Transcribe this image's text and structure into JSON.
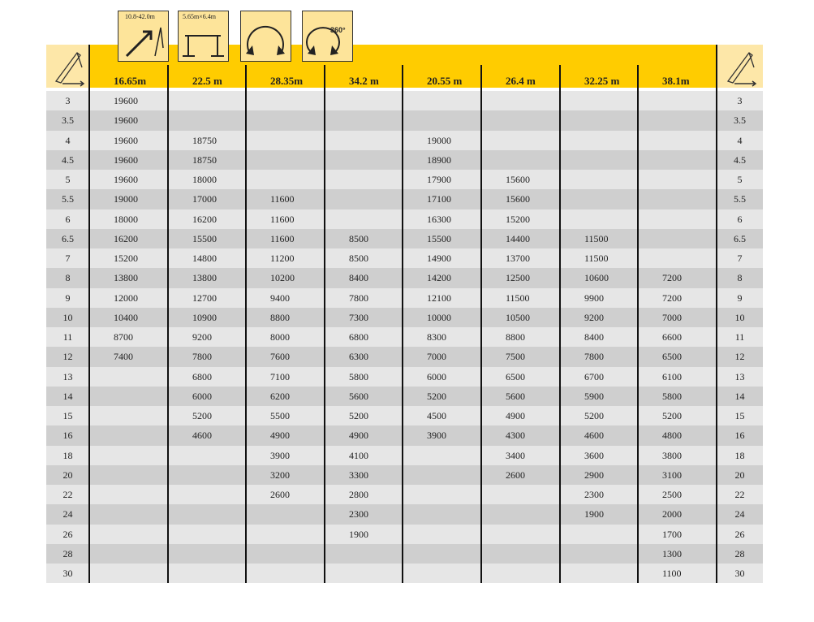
{
  "icons": {
    "boom_range": "10.8-42.0m",
    "outrigger_span": "5.65m×6.4m",
    "rotation": "360°"
  },
  "table": {
    "columns": [
      "16.65m",
      "22.5 m",
      "28.35m",
      "34.2 m",
      "20.55 m",
      "26.4 m",
      "32.25 m",
      "38.1m"
    ],
    "rows": [
      {
        "radius": 3,
        "values": [
          19600,
          null,
          null,
          null,
          null,
          null,
          null,
          null
        ]
      },
      {
        "radius": 3.5,
        "values": [
          19600,
          null,
          null,
          null,
          null,
          null,
          null,
          null
        ]
      },
      {
        "radius": 4,
        "values": [
          19600,
          18750,
          null,
          null,
          19000,
          null,
          null,
          null
        ]
      },
      {
        "radius": 4.5,
        "values": [
          19600,
          18750,
          null,
          null,
          18900,
          null,
          null,
          null
        ]
      },
      {
        "radius": 5,
        "values": [
          19600,
          18000,
          null,
          null,
          17900,
          15600,
          null,
          null
        ]
      },
      {
        "radius": 5.5,
        "values": [
          19000,
          17000,
          11600,
          null,
          17100,
          15600,
          null,
          null
        ]
      },
      {
        "radius": 6,
        "values": [
          18000,
          16200,
          11600,
          null,
          16300,
          15200,
          null,
          null
        ]
      },
      {
        "radius": 6.5,
        "values": [
          16200,
          15500,
          11600,
          8500,
          15500,
          14400,
          11500,
          null
        ]
      },
      {
        "radius": 7,
        "values": [
          15200,
          14800,
          11200,
          8500,
          14900,
          13700,
          11500,
          null
        ]
      },
      {
        "radius": 8,
        "values": [
          13800,
          13800,
          10200,
          8400,
          14200,
          12500,
          10600,
          7200
        ]
      },
      {
        "radius": 9,
        "values": [
          12000,
          12700,
          9400,
          7800,
          12100,
          11500,
          9900,
          7200
        ]
      },
      {
        "radius": 10,
        "values": [
          10400,
          10900,
          8800,
          7300,
          10000,
          10500,
          9200,
          7000
        ]
      },
      {
        "radius": 11,
        "values": [
          8700,
          9200,
          8000,
          6800,
          8300,
          8800,
          8400,
          6600
        ]
      },
      {
        "radius": 12,
        "values": [
          7400,
          7800,
          7600,
          6300,
          7000,
          7500,
          7800,
          6500
        ]
      },
      {
        "radius": 13,
        "values": [
          null,
          6800,
          7100,
          5800,
          6000,
          6500,
          6700,
          6100
        ]
      },
      {
        "radius": 14,
        "values": [
          null,
          6000,
          6200,
          5600,
          5200,
          5600,
          5900,
          5800
        ]
      },
      {
        "radius": 15,
        "values": [
          null,
          5200,
          5500,
          5200,
          4500,
          4900,
          5200,
          5200
        ]
      },
      {
        "radius": 16,
        "values": [
          null,
          4600,
          4900,
          4900,
          3900,
          4300,
          4600,
          4800
        ]
      },
      {
        "radius": 18,
        "values": [
          null,
          null,
          3900,
          4100,
          null,
          3400,
          3600,
          3800
        ]
      },
      {
        "radius": 20,
        "values": [
          null,
          null,
          3200,
          3300,
          null,
          2600,
          2900,
          3100
        ]
      },
      {
        "radius": 22,
        "values": [
          null,
          null,
          2600,
          2800,
          null,
          null,
          2300,
          2500
        ]
      },
      {
        "radius": 24,
        "values": [
          null,
          null,
          null,
          2300,
          null,
          null,
          1900,
          2000
        ]
      },
      {
        "radius": 26,
        "values": [
          null,
          null,
          null,
          1900,
          null,
          null,
          null,
          1700
        ]
      },
      {
        "radius": 28,
        "values": [
          null,
          null,
          null,
          null,
          null,
          null,
          null,
          1300
        ]
      },
      {
        "radius": 30,
        "values": [
          null,
          null,
          null,
          null,
          null,
          null,
          null,
          1100
        ]
      }
    ]
  }
}
